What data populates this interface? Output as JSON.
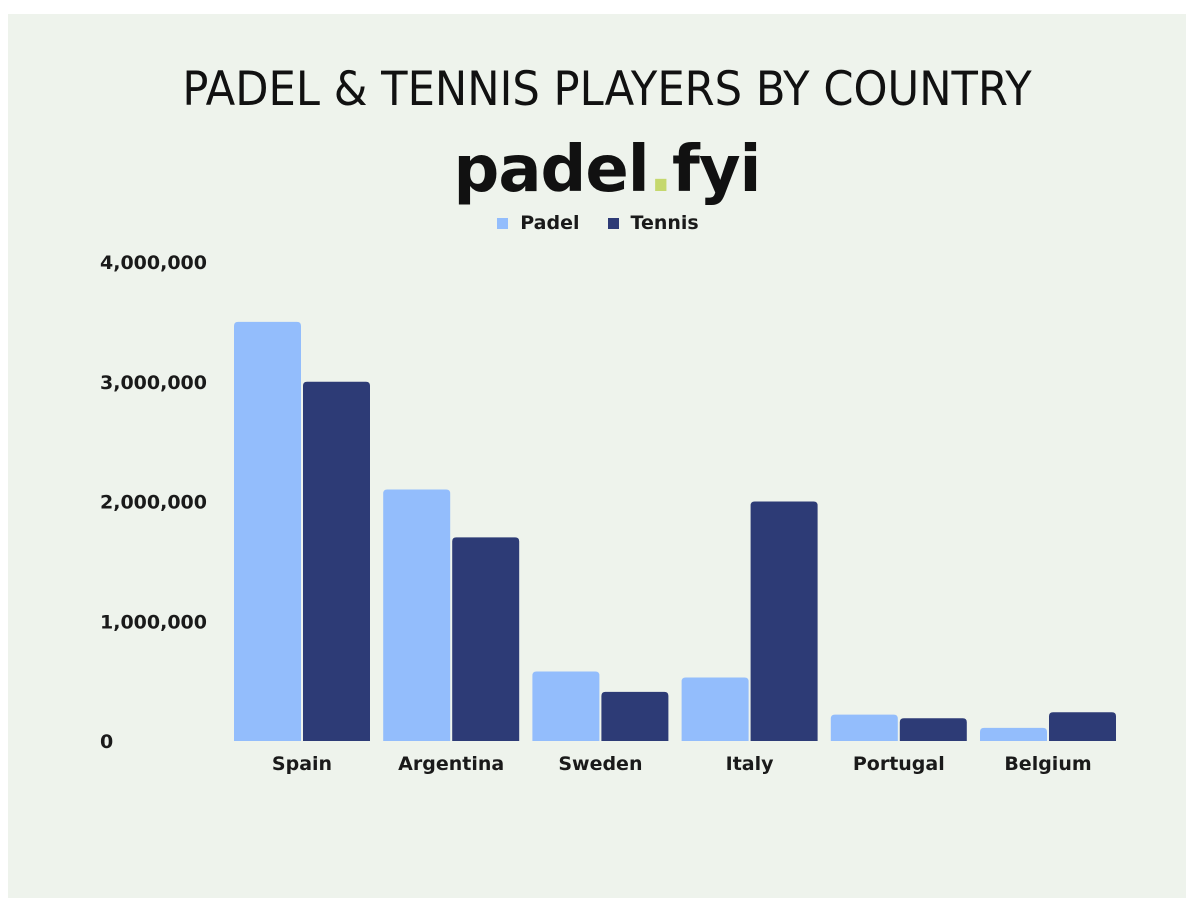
{
  "title": "PADEL & TENNIS PLAYERS BY COUNTRY",
  "brand": {
    "name": "padel",
    "dot": ".",
    "suffix": "fyi",
    "dot_color": "#c5d86d"
  },
  "colors": {
    "background": "#eef3ec",
    "padel": "#93bdfc",
    "tennis": "#2d3b76"
  },
  "chart_data": {
    "type": "bar",
    "title": "PADEL & TENNIS PLAYERS BY COUNTRY",
    "categories": [
      "Spain",
      "Argentina",
      "Sweden",
      "Italy",
      "Portugal",
      "Belgium"
    ],
    "series": [
      {
        "name": "Padel",
        "values": [
          3500000,
          2100000,
          580000,
          530000,
          220000,
          110000
        ]
      },
      {
        "name": "Tennis",
        "values": [
          3000000,
          1700000,
          410000,
          2000000,
          190000,
          240000
        ]
      }
    ],
    "yticks": [
      "0",
      "1,000,000",
      "2,000,000",
      "3,000,000",
      "4,000,000"
    ],
    "ylim": [
      0,
      4000000
    ],
    "xlabel": "",
    "ylabel": "",
    "grid": false,
    "legend": "top-center"
  }
}
